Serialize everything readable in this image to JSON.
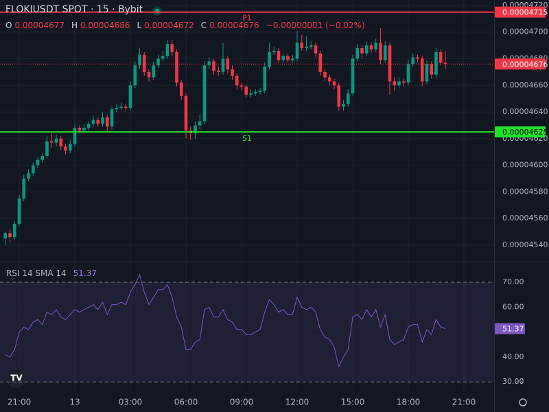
{
  "chart_data": [
    {
      "type": "candlestick",
      "title": "FLOKIUSDT SPOT · 15 · Bybit",
      "ohlc_legend": [
        {
          "key": "O",
          "value": "0.00004677"
        },
        {
          "key": "H",
          "value": "0.00004686"
        },
        {
          "key": "L",
          "value": "0.00004672"
        },
        {
          "key": "C",
          "value": "0.00004676"
        }
      ],
      "change": "−0.00000001 (−0.02%)",
      "up_color": "#089981",
      "down_color": "#f23645",
      "xlim": [
        -1.15,
        105.52
      ],
      "xticks": [
        {
          "value": 3,
          "label": "21:00"
        },
        {
          "value": 15,
          "label": "13"
        },
        {
          "value": 27,
          "label": "03:00"
        },
        {
          "value": 39,
          "label": "06:00"
        },
        {
          "value": 51,
          "label": "09:00"
        },
        {
          "value": 63,
          "label": "12:00"
        },
        {
          "value": 75,
          "label": "15:00"
        },
        {
          "value": 87,
          "label": "18:00"
        },
        {
          "value": 99,
          "label": "21:00"
        }
      ],
      "ylim": [
        4.5276e-05,
        4.7241e-05
      ],
      "yticks": [
        {
          "value": 4.54e-05,
          "label": "0.00004540"
        },
        {
          "value": 4.56e-05,
          "label": "0.00004560"
        },
        {
          "value": 4.58e-05,
          "label": "0.00004580"
        },
        {
          "value": 4.6e-05,
          "label": "0.00004600"
        },
        {
          "value": 4.62e-05,
          "label": "0.00004620"
        },
        {
          "value": 4.64e-05,
          "label": "0.00004640"
        },
        {
          "value": 4.66e-05,
          "label": "0.00004660"
        },
        {
          "value": 4.68e-05,
          "label": "0.00004680"
        },
        {
          "value": 4.7e-05,
          "label": "0.00004700"
        },
        {
          "value": 4.72e-05,
          "label": "0.00004720"
        }
      ],
      "levels": [
        {
          "name": "P1",
          "value": 4.715e-05,
          "label": "0.00004715",
          "color": "#f23645",
          "style": "solid"
        },
        {
          "name": "S1",
          "value": 4.625e-05,
          "label": "0.00004625",
          "color": "#22e32a",
          "style": "solid"
        },
        {
          "value": 4.676e-05,
          "label": "0.00004676",
          "color": "#f23645",
          "style": "dotted"
        }
      ],
      "open": [
        4.545e-05,
        4.549e-05,
        4.546e-05,
        4.556e-05,
        4.575e-05,
        4.59e-05,
        4.594e-05,
        4.6e-05,
        4.604e-05,
        4.607e-05,
        4.618e-05,
        4.617e-05,
        4.62e-05,
        4.614e-05,
        4.611e-05,
        4.616e-05,
        4.628e-05,
        4.626e-05,
        4.628e-05,
        4.631e-05,
        4.634e-05,
        4.631e-05,
        4.636e-05,
        4.629e-05,
        4.642e-05,
        4.643e-05,
        4.644e-05,
        4.643e-05,
        4.66e-05,
        4.675e-05,
        4.683e-05,
        4.67e-05,
        4.666e-05,
        4.675e-05,
        4.68e-05,
        4.682e-05,
        4.691e-05,
        4.685e-05,
        4.662e-05,
        4.652e-05,
        4.626e-05,
        4.624e-05,
        4.63e-05,
        4.633e-05,
        4.675e-05,
        4.678e-05,
        4.671e-05,
        4.67e-05,
        4.68e-05,
        4.672e-05,
        4.667e-05,
        4.66e-05,
        4.659e-05,
        4.653e-05,
        4.654e-05,
        4.655e-05,
        4.656e-05,
        4.674e-05,
        4.685e-05,
        4.686e-05,
        4.679e-05,
        4.682e-05,
        4.679e-05,
        4.68e-05,
        4.692e-05,
        4.688e-05,
        4.689e-05,
        4.69e-05,
        4.684e-05,
        4.67e-05,
        4.666e-05,
        4.663e-05,
        4.66e-05,
        4.644e-05,
        4.646e-05,
        4.654e-05,
        4.68e-05,
        4.688e-05,
        4.684e-05,
        4.69e-05,
        4.687e-05,
        4.692e-05,
        4.679e-05,
        4.69e-05,
        4.663e-05,
        4.66e-05,
        4.663e-05,
        4.662e-05,
        4.676e-05,
        4.681e-05,
        4.68e-05,
        4.663e-05,
        4.676e-05,
        4.668e-05,
        4.685e-05,
        4.677e-05
      ],
      "high": [
        4.55e-05,
        4.552e-05,
        4.558e-05,
        4.578e-05,
        4.593e-05,
        4.597e-05,
        4.602e-05,
        4.606e-05,
        4.609e-05,
        4.622e-05,
        4.624e-05,
        4.623e-05,
        4.622e-05,
        4.616e-05,
        4.619e-05,
        4.631e-05,
        4.63e-05,
        4.631e-05,
        4.633e-05,
        4.637e-05,
        4.636e-05,
        4.64e-05,
        4.638e-05,
        4.644e-05,
        4.646e-05,
        4.647e-05,
        4.646e-05,
        4.663e-05,
        4.678e-05,
        4.688e-05,
        4.685e-05,
        4.672e-05,
        4.678e-05,
        4.683e-05,
        4.686e-05,
        4.694e-05,
        4.694e-05,
        4.687e-05,
        4.664e-05,
        4.654e-05,
        4.629e-05,
        4.633e-05,
        4.638e-05,
        4.678e-05,
        4.681e-05,
        4.68e-05,
        4.674e-05,
        4.692e-05,
        4.682e-05,
        4.675e-05,
        4.669e-05,
        4.662e-05,
        4.661e-05,
        4.657e-05,
        4.657e-05,
        4.658e-05,
        4.677e-05,
        4.692e-05,
        4.689e-05,
        4.688e-05,
        4.684e-05,
        4.684e-05,
        4.683e-05,
        4.701e-05,
        4.698e-05,
        4.697e-05,
        4.693e-05,
        4.692e-05,
        4.686e-05,
        4.672e-05,
        4.668e-05,
        4.665e-05,
        4.662e-05,
        4.649e-05,
        4.657e-05,
        4.683e-05,
        4.691e-05,
        4.69e-05,
        4.693e-05,
        4.692e-05,
        4.695e-05,
        4.703e-05,
        4.693e-05,
        4.692e-05,
        4.666e-05,
        4.666e-05,
        4.665e-05,
        4.679e-05,
        4.684e-05,
        4.683e-05,
        4.682e-05,
        4.679e-05,
        4.678e-05,
        4.688e-05,
        4.687e-05,
        4.686e-05
      ],
      "low": [
        4.54e-05,
        4.542e-05,
        4.544e-05,
        4.554e-05,
        4.573e-05,
        4.588e-05,
        4.592e-05,
        4.598e-05,
        4.602e-05,
        4.605e-05,
        4.613e-05,
        4.614e-05,
        4.611e-05,
        4.608e-05,
        4.609e-05,
        4.614e-05,
        4.624e-05,
        4.624e-05,
        4.626e-05,
        4.629e-05,
        4.629e-05,
        4.629e-05,
        4.626e-05,
        4.627e-05,
        4.64e-05,
        4.641e-05,
        4.641e-05,
        4.641e-05,
        4.658e-05,
        4.672e-05,
        4.667e-05,
        4.663e-05,
        4.664e-05,
        4.673e-05,
        4.678e-05,
        4.68e-05,
        4.682e-05,
        4.659e-05,
        4.649e-05,
        4.62e-05,
        4.619e-05,
        4.62e-05,
        4.627e-05,
        4.631e-05,
        4.672e-05,
        4.668e-05,
        4.667e-05,
        4.668e-05,
        4.669e-05,
        4.664e-05,
        4.657e-05,
        4.656e-05,
        4.651e-05,
        4.651e-05,
        4.652e-05,
        4.653e-05,
        4.654e-05,
        4.672e-05,
        4.683e-05,
        4.677e-05,
        4.677e-05,
        4.677e-05,
        4.677e-05,
        4.678e-05,
        4.686e-05,
        4.686e-05,
        4.687e-05,
        4.681e-05,
        4.667e-05,
        4.663e-05,
        4.66e-05,
        4.657e-05,
        4.641e-05,
        4.641e-05,
        4.644e-05,
        4.652e-05,
        4.678e-05,
        4.681e-05,
        4.682e-05,
        4.684e-05,
        4.685e-05,
        4.676e-05,
        4.677e-05,
        4.653e-05,
        4.656e-05,
        4.658e-05,
        4.659e-05,
        4.66e-05,
        4.674e-05,
        4.677e-05,
        4.659e-05,
        4.661e-05,
        4.665e-05,
        4.666e-05,
        4.675e-05,
        4.672e-05
      ],
      "close": [
        4.549e-05,
        4.546e-05,
        4.556e-05,
        4.575e-05,
        4.59e-05,
        4.594e-05,
        4.6e-05,
        4.604e-05,
        4.607e-05,
        4.618e-05,
        4.617e-05,
        4.62e-05,
        4.614e-05,
        4.611e-05,
        4.616e-05,
        4.628e-05,
        4.626e-05,
        4.628e-05,
        4.631e-05,
        4.634e-05,
        4.631e-05,
        4.636e-05,
        4.629e-05,
        4.642e-05,
        4.643e-05,
        4.644e-05,
        4.643e-05,
        4.66e-05,
        4.675e-05,
        4.683e-05,
        4.67e-05,
        4.666e-05,
        4.675e-05,
        4.68e-05,
        4.682e-05,
        4.691e-05,
        4.685e-05,
        4.662e-05,
        4.652e-05,
        4.626e-05,
        4.624e-05,
        4.63e-05,
        4.633e-05,
        4.675e-05,
        4.678e-05,
        4.671e-05,
        4.67e-05,
        4.68e-05,
        4.672e-05,
        4.667e-05,
        4.66e-05,
        4.659e-05,
        4.653e-05,
        4.654e-05,
        4.655e-05,
        4.656e-05,
        4.674e-05,
        4.685e-05,
        4.686e-05,
        4.679e-05,
        4.682e-05,
        4.679e-05,
        4.68e-05,
        4.692e-05,
        4.688e-05,
        4.689e-05,
        4.69e-05,
        4.684e-05,
        4.67e-05,
        4.666e-05,
        4.663e-05,
        4.66e-05,
        4.644e-05,
        4.646e-05,
        4.654e-05,
        4.68e-05,
        4.688e-05,
        4.684e-05,
        4.69e-05,
        4.687e-05,
        4.692e-05,
        4.679e-05,
        4.69e-05,
        4.663e-05,
        4.66e-05,
        4.663e-05,
        4.662e-05,
        4.676e-05,
        4.681e-05,
        4.68e-05,
        4.663e-05,
        4.676e-05,
        4.668e-05,
        4.685e-05,
        4.677e-05,
        4.676e-05
      ]
    },
    {
      "type": "line",
      "title": "RSI 14 SMA 14",
      "color": "#7e57c2",
      "band": [
        30,
        70
      ],
      "ylim": [
        26.2,
        77.7
      ],
      "yticks": [
        {
          "value": 30,
          "label": "30.00"
        },
        {
          "value": 40,
          "label": "40.00"
        },
        {
          "value": 50,
          "label": "50.00"
        },
        {
          "value": 60,
          "label": "60.00"
        },
        {
          "value": 70,
          "label": "70.00"
        }
      ],
      "values": [
        41,
        40,
        43,
        50,
        52,
        51,
        54,
        55,
        53,
        58,
        57,
        59,
        56,
        55,
        57,
        59,
        58,
        59,
        60,
        61,
        59,
        62,
        57,
        61,
        61,
        62,
        61,
        66,
        69,
        73,
        66,
        61,
        64,
        67,
        67,
        69,
        64,
        56,
        52,
        43,
        43,
        46,
        47,
        59,
        60,
        56,
        56,
        59,
        55,
        54,
        51,
        51,
        49,
        49,
        50,
        51,
        58,
        63,
        61,
        58,
        59,
        57,
        57,
        64,
        60,
        59,
        60,
        58,
        51,
        48,
        47,
        44,
        36,
        40,
        43,
        56,
        57,
        55,
        59,
        56,
        59,
        52,
        57,
        47,
        45,
        46,
        47,
        52,
        53,
        53,
        46,
        51,
        49,
        55,
        52,
        51.37
      ]
    }
  ]
}
